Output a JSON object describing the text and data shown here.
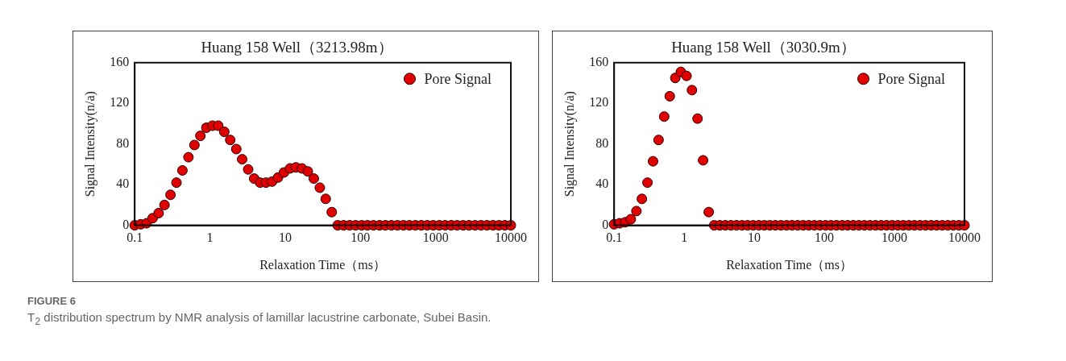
{
  "chart_data": [
    {
      "type": "scatter",
      "title": "Huang 158 Well（3213.98m）",
      "xlabel": "Relaxation Time（ms）",
      "ylabel": "Signal Intensity(n/a)",
      "log": "x",
      "marker": "circle",
      "legend": "top right",
      "grid": false,
      "x": [
        0.1,
        0.12,
        0.144,
        0.173,
        0.208,
        0.249,
        0.299,
        0.359,
        0.431,
        0.518,
        0.622,
        0.746,
        0.896,
        1.08,
        1.29,
        1.55,
        1.86,
        2.24,
        2.68,
        3.22,
        3.87,
        4.64,
        5.57,
        6.69,
        8.03,
        9.64,
        11.6,
        13.9,
        16.7,
        20.0,
        24.0,
        28.9,
        34.6,
        41.6,
        49.9,
        59.9,
        72.0,
        86.4,
        104,
        124,
        149,
        180,
        215,
        259,
        311,
        373,
        448,
        537,
        645,
        774,
        929,
        1120,
        1340,
        1610,
        1930,
        2320,
        2780,
        3340,
        4010,
        4820,
        5790,
        6950,
        8340,
        10000
      ],
      "series": [
        {
          "name": "Pore Signal",
          "color": "#e00000",
          "values": [
            0,
            1,
            2,
            7,
            12,
            20,
            30,
            42,
            54,
            67,
            79,
            88,
            96,
            98,
            98,
            92,
            84,
            75,
            65,
            55,
            46,
            42,
            42,
            43,
            47,
            52,
            56,
            57,
            56,
            53,
            46,
            37,
            26,
            13,
            0,
            0,
            0,
            0,
            0,
            0,
            0,
            0,
            0,
            0,
            0,
            0,
            0,
            0,
            0,
            0,
            0,
            0,
            0,
            0,
            0,
            0,
            0,
            0,
            0,
            0,
            0,
            0,
            0,
            0
          ]
        }
      ],
      "xlim": [
        0.1,
        10000
      ],
      "xticks": [
        0.1,
        1,
        10,
        100,
        1000,
        10000
      ],
      "ylim": [
        0,
        160
      ],
      "yticks": [
        0,
        40,
        80,
        120,
        160
      ],
      "annotations": [
        "FIGURE 6",
        "T$_{2}$ distribution spectrum by NMR analysis of lamillar lacustrine carbonate, Subei Basin."
      ]
    },
    {
      "type": "scatter",
      "title": "Huang 158 Well（3030.9m）",
      "xlabel": "Relaxation Time（ms）",
      "ylabel": "Signal Intensity(n/a)",
      "log": "x",
      "marker": "circle",
      "legend": "top right",
      "grid": false,
      "x": [
        0.1,
        0.12,
        0.144,
        0.173,
        0.208,
        0.249,
        0.299,
        0.359,
        0.431,
        0.518,
        0.622,
        0.746,
        0.896,
        1.08,
        1.29,
        1.55,
        1.86,
        2.24,
        2.68,
        3.22,
        3.87,
        4.64,
        5.57,
        6.69,
        8.03,
        9.64,
        11.6,
        13.9,
        16.7,
        20.0,
        24.0,
        28.9,
        34.6,
        41.6,
        49.9,
        59.9,
        72.0,
        86.4,
        104,
        124,
        149,
        180,
        215,
        259,
        311,
        373,
        448,
        537,
        645,
        774,
        929,
        1120,
        1340,
        1610,
        1930,
        2320,
        2780,
        3340,
        4010,
        4820,
        5790,
        6950,
        8340,
        10000
      ],
      "series": [
        {
          "name": "Pore Signal",
          "color": "#e00000",
          "values": [
            1,
            2,
            3,
            6,
            14,
            26,
            42,
            63,
            84,
            107,
            127,
            145,
            151,
            147,
            133,
            105,
            64,
            13,
            0,
            0,
            0,
            0,
            0,
            0,
            0,
            0,
            0,
            0,
            0,
            0,
            0,
            0,
            0,
            0,
            0,
            0,
            0,
            0,
            0,
            0,
            0,
            0,
            0,
            0,
            0,
            0,
            0,
            0,
            0,
            0,
            0,
            0,
            0,
            0,
            0,
            0,
            0,
            0,
            0,
            0,
            0,
            0,
            0,
            0
          ]
        }
      ],
      "xlim": [
        0.1,
        10000
      ],
      "xticks": [
        0.1,
        1,
        10,
        100,
        1000,
        10000
      ],
      "ylim": [
        0,
        160
      ],
      "yticks": [
        0,
        40,
        80,
        120,
        160
      ]
    }
  ]
}
